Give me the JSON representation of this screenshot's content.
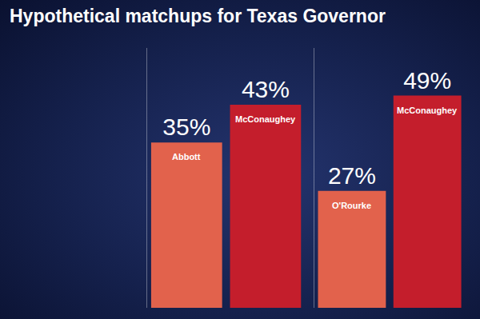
{
  "chart_data": [
    {
      "type": "bar",
      "title": "Hypothetical matchups for Texas Governor",
      "categories": [
        "Abbott",
        "McConaughey"
      ],
      "values": [
        35,
        43
      ],
      "value_labels": [
        "35%",
        "43%"
      ],
      "colors": [
        "#e2624c",
        "#c41e2c"
      ],
      "ylim": [
        0,
        55
      ],
      "data_labels": true,
      "tick_labels": false
    },
    {
      "type": "bar",
      "categories": [
        "O'Rourke",
        "McConaughey"
      ],
      "values": [
        27,
        49
      ],
      "value_labels": [
        "27%",
        "49%"
      ],
      "colors": [
        "#e2624c",
        "#c41e2c"
      ],
      "ylim": [
        0,
        60
      ],
      "data_labels": true,
      "tick_labels": false
    }
  ]
}
